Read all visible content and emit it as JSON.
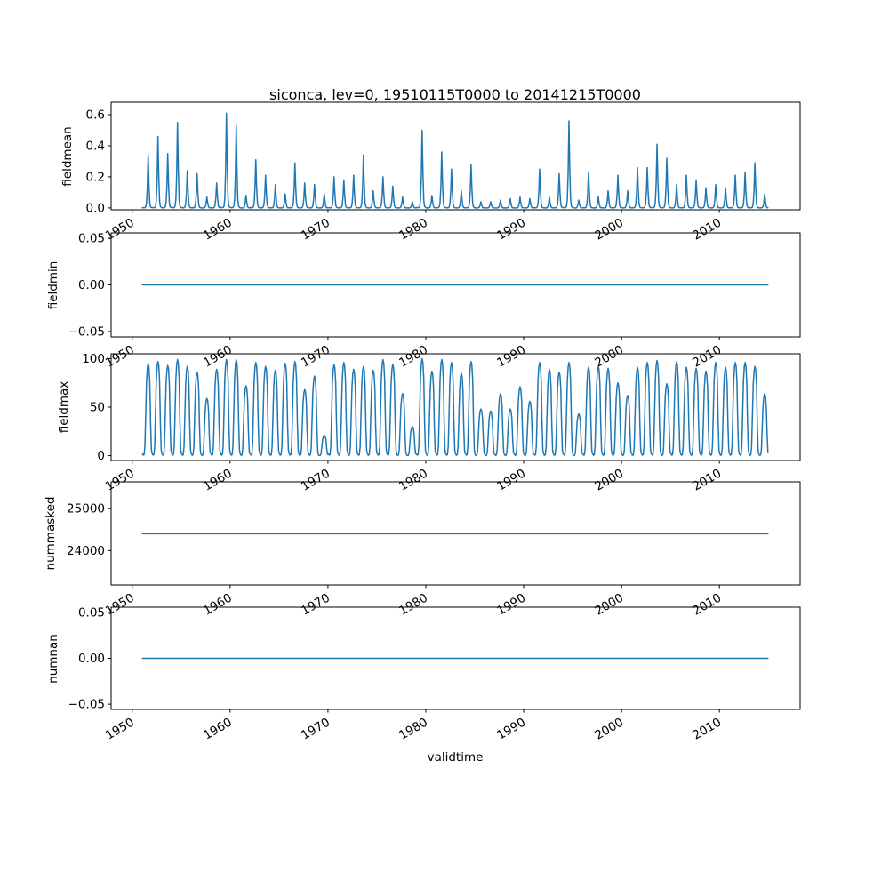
{
  "figure": {
    "title": "siconca, lev=0, 19510115T0000 to 20141215T0000",
    "xlabel": "validtime",
    "line_color": "#1f77b4",
    "spine_color": "#000000",
    "background": "#ffffff"
  },
  "x_axis": {
    "tick_years": [
      1950,
      1960,
      1970,
      1980,
      1990,
      2000,
      2010
    ],
    "tick_labels": [
      "1950",
      "1960",
      "1970",
      "1980",
      "1990",
      "2000",
      "2010"
    ],
    "tick_rotation_deg": 30,
    "data_start": "19510115T0000",
    "data_end": "20141215T0000"
  },
  "subplots": [
    {
      "ylabel": "fieldmean",
      "yticks": [
        0.0,
        0.2,
        0.4,
        0.6
      ],
      "ytick_labels": [
        "0.0",
        "0.2",
        "0.4",
        "0.6"
      ]
    },
    {
      "ylabel": "fieldmin",
      "yticks": [
        -0.05,
        0.0,
        0.05
      ],
      "ytick_labels": [
        "−0.05",
        "0.00",
        "0.05"
      ]
    },
    {
      "ylabel": "fieldmax",
      "yticks": [
        0,
        50,
        100
      ],
      "ytick_labels": [
        "0",
        "50",
        "100"
      ]
    },
    {
      "ylabel": "nummasked",
      "yticks": [
        24000,
        25000
      ],
      "ytick_labels": [
        "24000",
        "25000"
      ]
    },
    {
      "ylabel": "numnan",
      "yticks": [
        -0.05,
        0.0,
        0.05
      ],
      "ytick_labels": [
        "−0.05",
        "0.00",
        "0.05"
      ]
    }
  ],
  "chart_data": [
    {
      "type": "line",
      "name": "fieldmean",
      "title": "siconca, lev=0, 19510115T0000 to 20141215T0000",
      "ylabel": "fieldmean",
      "xlabel": "validtime",
      "pattern": "monthly series; near 0 most of each year with one sharp spike peaking around Aug-Sep",
      "baseline_value": 0.0,
      "x_range_years": [
        1951.04,
        2014.96
      ],
      "xlim": [
        1947.8,
        2018.3
      ],
      "ylim": [
        -0.01,
        0.68
      ],
      "xticks": [
        1950,
        1960,
        1970,
        1980,
        1990,
        2000,
        2010
      ],
      "yticks": [
        0.0,
        0.2,
        0.4,
        0.6
      ],
      "grid": false,
      "legend": "none",
      "peak_years": [
        1951,
        1952,
        1953,
        1954,
        1955,
        1956,
        1957,
        1958,
        1959,
        1960,
        1961,
        1962,
        1963,
        1964,
        1965,
        1966,
        1967,
        1968,
        1969,
        1970,
        1971,
        1972,
        1973,
        1974,
        1975,
        1976,
        1977,
        1978,
        1979,
        1980,
        1981,
        1982,
        1983,
        1984,
        1985,
        1986,
        1987,
        1988,
        1989,
        1990,
        1991,
        1992,
        1993,
        1994,
        1995,
        1996,
        1997,
        1998,
        1999,
        2000,
        2001,
        2002,
        2003,
        2004,
        2005,
        2006,
        2007,
        2008,
        2009,
        2010,
        2011,
        2012,
        2013,
        2014
      ],
      "peak_values": [
        0.34,
        0.46,
        0.35,
        0.55,
        0.24,
        0.22,
        0.07,
        0.16,
        0.61,
        0.53,
        0.08,
        0.31,
        0.21,
        0.15,
        0.09,
        0.29,
        0.16,
        0.15,
        0.09,
        0.2,
        0.18,
        0.21,
        0.34,
        0.11,
        0.2,
        0.14,
        0.07,
        0.04,
        0.5,
        0.08,
        0.36,
        0.25,
        0.11,
        0.28,
        0.04,
        0.04,
        0.05,
        0.06,
        0.07,
        0.06,
        0.25,
        0.07,
        0.22,
        0.56,
        0.05,
        0.23,
        0.07,
        0.11,
        0.21,
        0.11,
        0.26,
        0.26,
        0.41,
        0.32,
        0.15,
        0.21,
        0.18,
        0.13,
        0.15,
        0.13,
        0.21,
        0.23,
        0.29,
        0.09
      ]
    },
    {
      "type": "line",
      "name": "fieldmin",
      "ylabel": "fieldmin",
      "pattern": "constant flat line",
      "constant_value": 0.0,
      "x_range_years": [
        1951.04,
        2014.96
      ],
      "xlim": [
        1947.8,
        2018.3
      ],
      "ylim": [
        -0.055,
        0.055
      ],
      "xticks": [
        1950,
        1960,
        1970,
        1980,
        1990,
        2000,
        2010
      ],
      "yticks": [
        -0.05,
        0.0,
        0.05
      ],
      "grid": false,
      "legend": "none"
    },
    {
      "type": "line",
      "name": "fieldmax",
      "ylabel": "fieldmax",
      "pattern": "monthly seasonal cycle each year: minimum near 0 around Feb, broad maximum around Aug-Sep",
      "annual_min": 0,
      "x_range_years": [
        1951.04,
        2014.96
      ],
      "xlim": [
        1947.8,
        2018.3
      ],
      "ylim": [
        -5,
        105
      ],
      "xticks": [
        1950,
        1960,
        1970,
        1980,
        1990,
        2000,
        2010
      ],
      "yticks": [
        0,
        50,
        100
      ],
      "grid": false,
      "legend": "none",
      "peak_years": [
        1951,
        1952,
        1953,
        1954,
        1955,
        1956,
        1957,
        1958,
        1959,
        1960,
        1961,
        1962,
        1963,
        1964,
        1965,
        1966,
        1967,
        1968,
        1969,
        1970,
        1971,
        1972,
        1973,
        1974,
        1975,
        1976,
        1977,
        1978,
        1979,
        1980,
        1981,
        1982,
        1983,
        1984,
        1985,
        1986,
        1987,
        1988,
        1989,
        1990,
        1991,
        1992,
        1993,
        1994,
        1995,
        1996,
        1997,
        1998,
        1999,
        2000,
        2001,
        2002,
        2003,
        2004,
        2005,
        2006,
        2007,
        2008,
        2009,
        2010,
        2011,
        2012,
        2013,
        2014
      ],
      "peak_values": [
        95,
        97,
        93,
        99,
        92,
        86,
        59,
        89,
        99,
        99,
        72,
        96,
        92,
        88,
        95,
        97,
        68,
        82,
        21,
        94,
        96,
        89,
        92,
        88,
        99,
        94,
        64,
        30,
        100,
        87,
        99,
        96,
        85,
        97,
        48,
        46,
        64,
        48,
        71,
        56,
        96,
        89,
        86,
        96,
        43,
        91,
        92,
        90,
        75,
        62,
        91,
        96,
        98,
        74,
        97,
        91,
        90,
        87,
        96,
        91,
        96,
        96,
        92,
        64
      ]
    },
    {
      "type": "line",
      "name": "nummasked",
      "ylabel": "nummasked",
      "pattern": "constant flat line",
      "constant_value": 24400,
      "x_range_years": [
        1951.04,
        2014.96
      ],
      "xlim": [
        1947.8,
        2018.3
      ],
      "ylim": [
        23187,
        25627
      ],
      "xticks": [
        1950,
        1960,
        1970,
        1980,
        1990,
        2000,
        2010
      ],
      "yticks": [
        24000,
        25000
      ],
      "grid": false,
      "legend": "none"
    },
    {
      "type": "line",
      "name": "numnan",
      "ylabel": "numnan",
      "pattern": "constant flat line",
      "constant_value": 0.0,
      "x_range_years": [
        1951.04,
        2014.96
      ],
      "xlim": [
        1947.8,
        2018.3
      ],
      "ylim": [
        -0.055,
        0.055
      ],
      "xticks": [
        1950,
        1960,
        1970,
        1980,
        1990,
        2000,
        2010
      ],
      "yticks": [
        -0.05,
        0.0,
        0.05
      ],
      "grid": false,
      "legend": "none"
    }
  ]
}
